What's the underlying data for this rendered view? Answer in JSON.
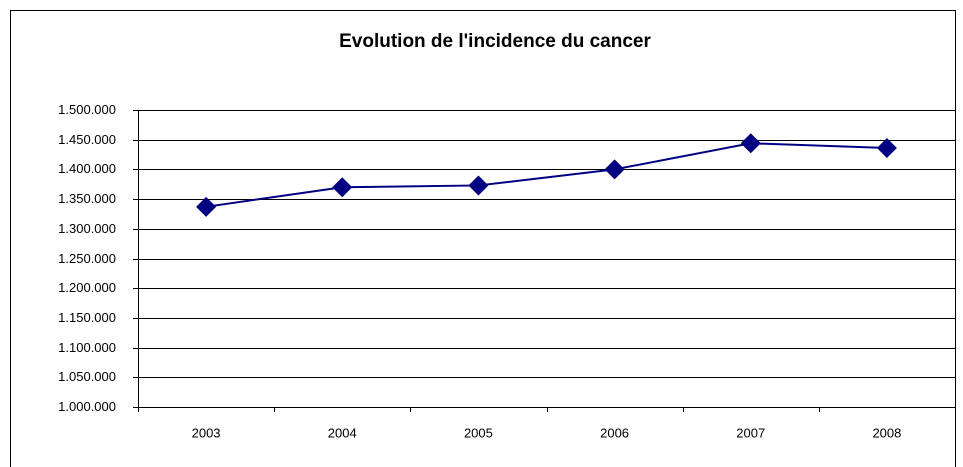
{
  "chart_data": {
    "type": "line",
    "title": "Evolution de l'incidence du cancer",
    "categories": [
      "2003",
      "2004",
      "2005",
      "2006",
      "2007",
      "2008"
    ],
    "series": [
      {
        "color": "#000080",
        "values": [
          1337000,
          1370000,
          1373000,
          1400000,
          1444000,
          1436000
        ]
      }
    ],
    "ylim": [
      1000000,
      1500000
    ],
    "yticks": [
      {
        "value": 1000000,
        "label": "1.000.000"
      },
      {
        "value": 1050000,
        "label": "1.050.000"
      },
      {
        "value": 1100000,
        "label": "1.100.000"
      },
      {
        "value": 1150000,
        "label": "1.150.000"
      },
      {
        "value": 1200000,
        "label": "1.200.000"
      },
      {
        "value": 1250000,
        "label": "1.250.000"
      },
      {
        "value": 1300000,
        "label": "1.300.000"
      },
      {
        "value": 1350000,
        "label": "1.350.000"
      },
      {
        "value": 1400000,
        "label": "1.400.000"
      },
      {
        "value": 1450000,
        "label": "1.450.000"
      },
      {
        "value": 1500000,
        "label": "1.500.000"
      }
    ],
    "grid": true
  }
}
